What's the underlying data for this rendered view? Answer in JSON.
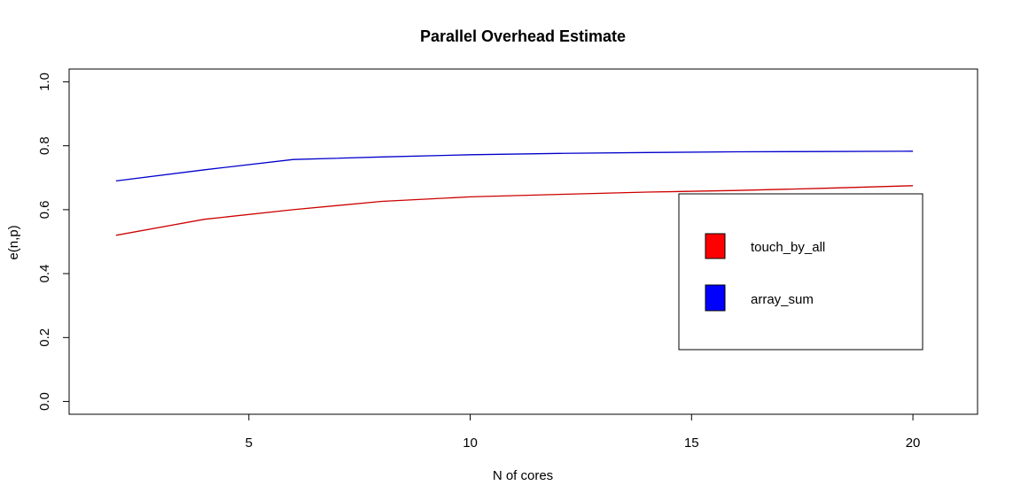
{
  "chart_data": {
    "type": "line",
    "title": "Parallel Overhead Estimate",
    "xlabel": "N of cores",
    "ylabel": "e(n,p)",
    "xlim": [
      0.94,
      21.46
    ],
    "ylim": [
      -0.04,
      1.04
    ],
    "xticks": [
      5,
      10,
      15,
      20
    ],
    "yticks": [
      0.0,
      0.2,
      0.4,
      0.6,
      0.8,
      1.0
    ],
    "xtick_labels": [
      "5",
      "10",
      "15",
      "20"
    ],
    "ytick_labels": [
      "0.0",
      "0.2",
      "0.4",
      "0.6",
      "0.8",
      "1.0"
    ],
    "grid": false,
    "legend_position": "right",
    "series": [
      {
        "name": "touch_by_all",
        "color": "#cc0000",
        "swatch_color": "#ff0000",
        "x": [
          2,
          4,
          6,
          8,
          10,
          12,
          14,
          16,
          18,
          20
        ],
        "y": [
          0.52,
          0.57,
          0.6,
          0.626,
          0.64,
          0.648,
          0.655,
          0.66,
          0.667,
          0.675
        ]
      },
      {
        "name": "array_sum",
        "color": "#0000cc",
        "swatch_color": "#0000ff",
        "x": [
          2,
          4,
          6,
          8,
          10,
          12,
          14,
          16,
          18,
          20
        ],
        "y": [
          0.69,
          0.725,
          0.757,
          0.765,
          0.772,
          0.776,
          0.779,
          0.781,
          0.782,
          0.783
        ]
      }
    ]
  }
}
